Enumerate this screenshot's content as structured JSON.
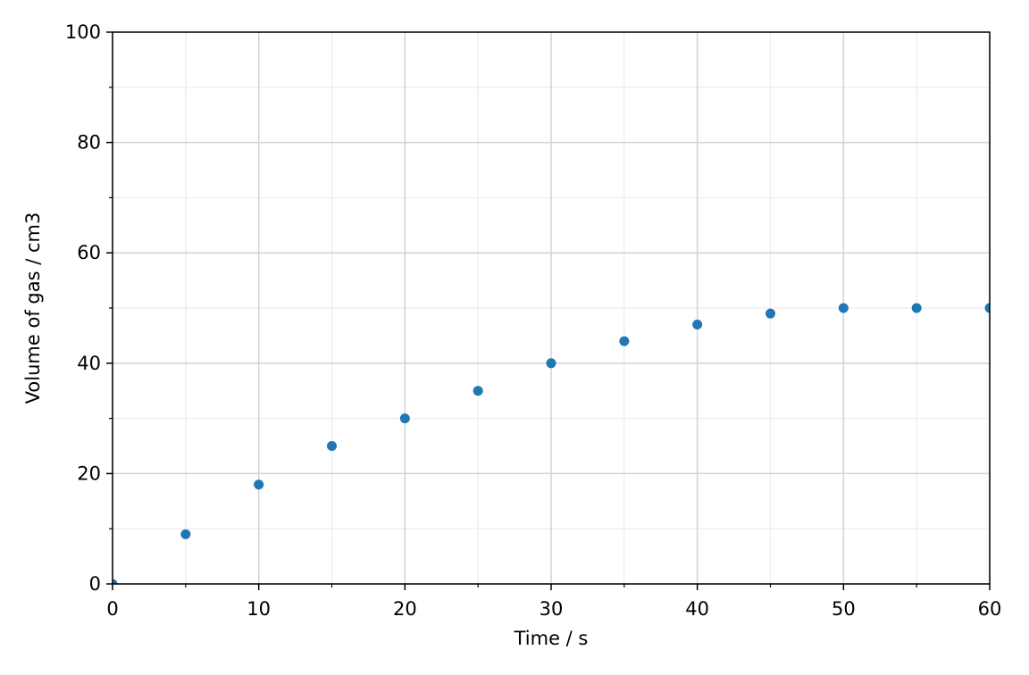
{
  "chart_data": {
    "type": "scatter",
    "x_label": "Time / s",
    "y_label": "Volume of gas / cm3",
    "x": [
      0,
      5,
      10,
      15,
      20,
      25,
      30,
      35,
      40,
      45,
      50,
      55,
      60
    ],
    "series": [
      {
        "color": "#1f77b4",
        "values": [
          0,
          9,
          18,
          25,
          30,
          35,
          40,
          44,
          47,
          49,
          50,
          50,
          50
        ]
      }
    ],
    "xlim": [
      0,
      60
    ],
    "ylim": [
      0,
      100
    ],
    "xticks": [
      0,
      10,
      20,
      30,
      40,
      50,
      60
    ],
    "yticks": [
      0,
      20,
      40,
      60,
      80,
      100
    ],
    "xminorticks": [
      5,
      15,
      25,
      35,
      45,
      55
    ],
    "yminorticks": [
      10,
      30,
      50,
      70,
      90
    ],
    "grid": true
  }
}
